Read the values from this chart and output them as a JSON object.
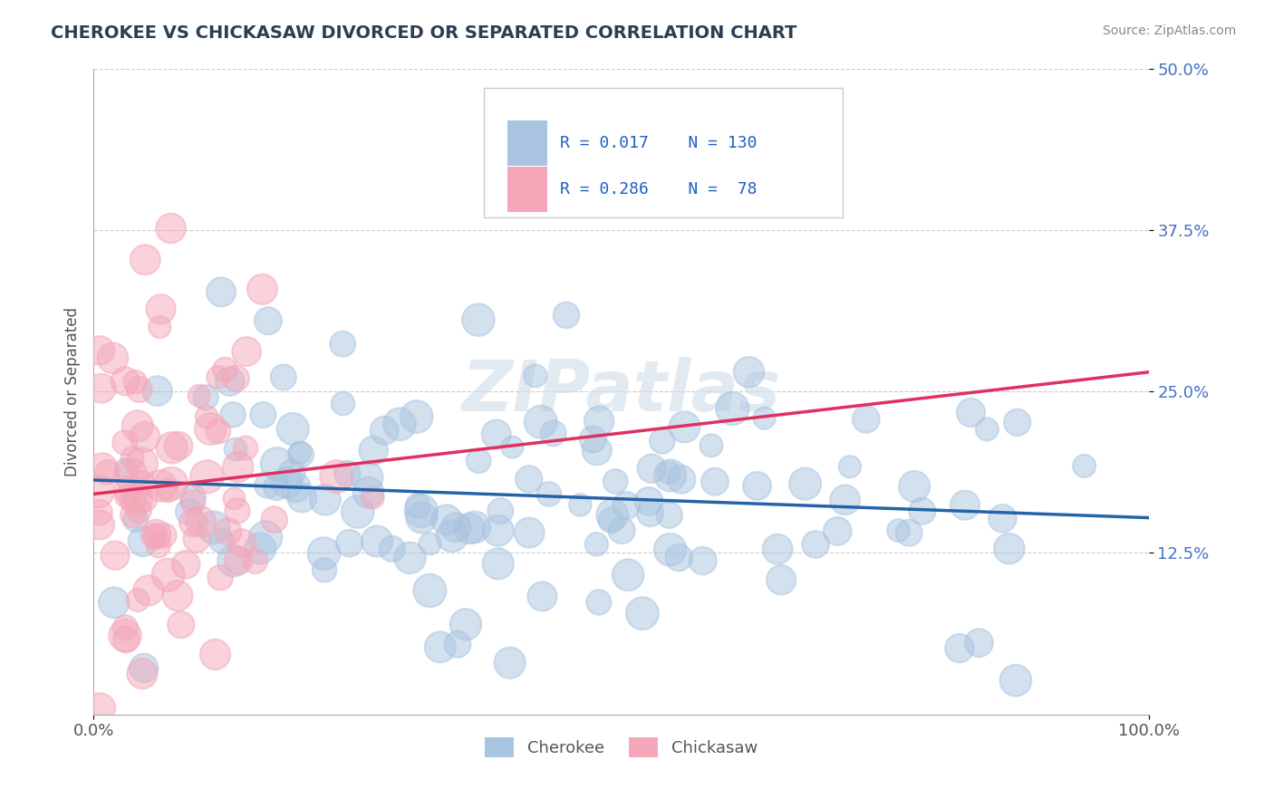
{
  "title": "CHEROKEE VS CHICKASAW DIVORCED OR SEPARATED CORRELATION CHART",
  "source_text": "Source: ZipAtlas.com",
  "ylabel": "Divorced or Separated",
  "xlim": [
    0,
    1
  ],
  "ylim": [
    0,
    0.5
  ],
  "xtick_labels": [
    "0.0%",
    "100.0%"
  ],
  "ytick_labels": [
    "12.5%",
    "25.0%",
    "37.5%",
    "50.0%"
  ],
  "ytick_vals": [
    0.125,
    0.25,
    0.375,
    0.5
  ],
  "cherokee_color": "#a8c4e0",
  "chickasaw_color": "#f4a7b9",
  "cherokee_line_color": "#2563a8",
  "chickasaw_line_color": "#e03060",
  "cherokee_R": 0.017,
  "cherokee_N": 130,
  "chickasaw_R": 0.286,
  "chickasaw_N": 78,
  "legend_color": "#2060c0",
  "watermark_text": "ZIPatlas",
  "grid_color": "#cccccc",
  "background_color": "#ffffff",
  "title_color": "#2c3e50",
  "scatter_alpha": 0.5,
  "seed_cherokee": 42,
  "seed_chickasaw": 7
}
